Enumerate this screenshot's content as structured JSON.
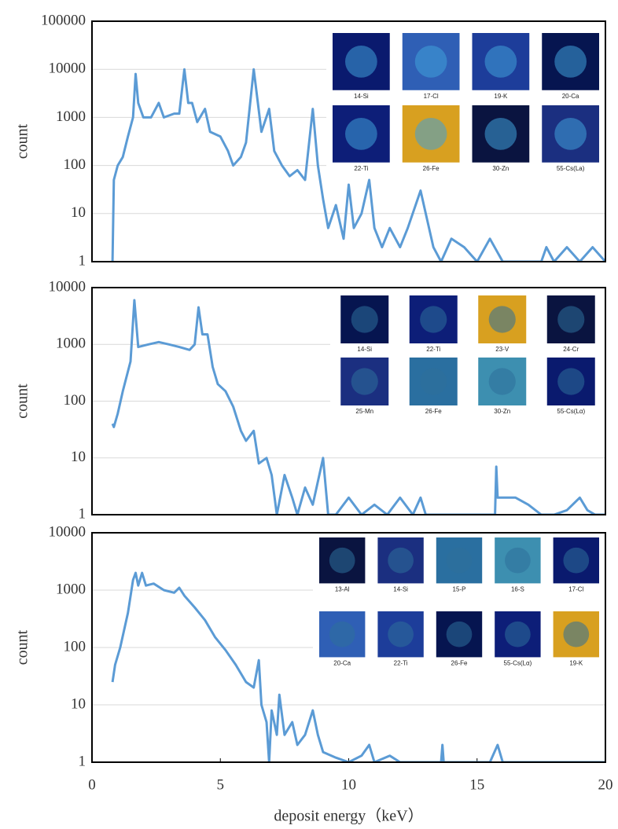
{
  "chart_data": [
    {
      "type": "line",
      "y_label": "count",
      "log_y": true,
      "grid": true,
      "color": "#5b9bd5",
      "xlim": [
        0,
        20
      ],
      "ylim": [
        1,
        100000
      ],
      "yticks": [
        1,
        10,
        100,
        1000,
        10000,
        100000
      ],
      "x": [
        0.8,
        0.85,
        1.0,
        1.2,
        1.4,
        1.6,
        1.7,
        1.8,
        2.0,
        2.3,
        2.6,
        2.8,
        3.2,
        3.4,
        3.6,
        3.75,
        3.9,
        4.1,
        4.4,
        4.6,
        5.0,
        5.3,
        5.5,
        5.8,
        6.0,
        6.3,
        6.6,
        6.9,
        7.1,
        7.4,
        7.7,
        8.0,
        8.3,
        8.6,
        8.8,
        9.0,
        9.2,
        9.5,
        9.8,
        10.0,
        10.2,
        10.5,
        10.8,
        11.0,
        11.3,
        11.6,
        12.0,
        12.3,
        12.8,
        13.0,
        13.3,
        13.6,
        14.0,
        14.5,
        15.0,
        15.5,
        16.0,
        17.5,
        17.7,
        18.0,
        18.5,
        19.0,
        19.5,
        20.0
      ],
      "values": [
        1,
        50,
        100,
        150,
        400,
        1000,
        8000,
        2000,
        1000,
        1000,
        2000,
        1000,
        1200,
        1200,
        10000,
        2000,
        2000,
        800,
        1500,
        500,
        400,
        200,
        100,
        150,
        300,
        10000,
        500,
        1500,
        200,
        100,
        60,
        80,
        50,
        1500,
        100,
        20,
        5,
        15,
        3,
        40,
        5,
        10,
        50,
        5,
        2,
        5,
        2,
        5,
        30,
        10,
        2,
        1,
        3,
        2,
        1,
        3,
        1,
        1,
        2,
        1,
        2,
        1,
        2,
        1
      ],
      "insets": [
        "14-Si",
        "17-Cl",
        "19-K",
        "20-Ca",
        "22-Ti",
        "26-Fe",
        "30-Zn",
        "55-Cs(La)"
      ]
    },
    {
      "type": "line",
      "y_label": "count",
      "log_y": true,
      "grid": true,
      "color": "#5b9bd5",
      "xlim": [
        0,
        20
      ],
      "ylim": [
        1,
        10000
      ],
      "yticks": [
        1,
        10,
        100,
        1000,
        10000
      ],
      "x": [
        0.8,
        0.85,
        1.0,
        1.2,
        1.5,
        1.65,
        1.8,
        2.2,
        2.6,
        3.0,
        3.4,
        3.8,
        4.0,
        4.15,
        4.3,
        4.5,
        4.7,
        4.9,
        5.2,
        5.5,
        5.8,
        6.0,
        6.3,
        6.5,
        6.8,
        7.0,
        7.2,
        7.5,
        7.8,
        8.0,
        8.3,
        8.6,
        9.0,
        9.2,
        9.5,
        10.0,
        10.5,
        11.0,
        11.5,
        12.0,
        12.5,
        12.8,
        13.0,
        14.0,
        15.7,
        15.75,
        15.8,
        16.5,
        17.0,
        17.5,
        18.0,
        18.5,
        19.0,
        19.3,
        19.6,
        20.0
      ],
      "values": [
        40,
        35,
        60,
        150,
        500,
        6000,
        900,
        1000,
        1100,
        1000,
        900,
        800,
        1000,
        4500,
        1500,
        1500,
        400,
        200,
        150,
        80,
        30,
        20,
        30,
        8,
        10,
        5,
        1,
        5,
        2,
        1,
        3,
        1.5,
        10,
        1,
        1,
        2,
        1,
        1.5,
        1,
        2,
        1,
        2,
        1,
        1,
        1,
        7,
        2,
        2,
        1.5,
        1,
        1,
        1.2,
        2,
        1.2,
        1,
        1
      ],
      "insets": [
        "14-Si",
        "22-Ti",
        "23-V",
        "24-Cr",
        "25-Mn",
        "26-Fe",
        "30-Zn",
        "55-Cs(Lα)"
      ]
    },
    {
      "type": "line",
      "y_label": "count",
      "x_label": "deposit energy（keV）",
      "log_y": true,
      "grid": true,
      "color": "#5b9bd5",
      "xlim": [
        0,
        20
      ],
      "xticks": [
        0,
        5,
        10,
        15,
        20
      ],
      "ylim": [
        1,
        10000
      ],
      "yticks": [
        1,
        10,
        100,
        1000,
        10000
      ],
      "x": [
        0.8,
        0.9,
        1.1,
        1.4,
        1.6,
        1.7,
        1.8,
        1.95,
        2.1,
        2.4,
        2.8,
        3.2,
        3.4,
        3.6,
        4.0,
        4.4,
        4.8,
        5.2,
        5.6,
        6.0,
        6.3,
        6.5,
        6.6,
        6.8,
        6.9,
        7.0,
        7.2,
        7.3,
        7.5,
        7.8,
        8.0,
        8.3,
        8.6,
        8.8,
        9.0,
        9.5,
        10.0,
        10.5,
        10.8,
        11.0,
        11.6,
        12.0,
        13.6,
        13.65,
        13.7,
        15.5,
        15.8,
        16.0,
        20.0
      ],
      "values": [
        25,
        50,
        100,
        400,
        1500,
        2000,
        1200,
        2000,
        1200,
        1300,
        1000,
        900,
        1100,
        800,
        500,
        300,
        150,
        90,
        50,
        25,
        20,
        60,
        10,
        5,
        1,
        8,
        3,
        15,
        3,
        5,
        2,
        3,
        8,
        3,
        1.5,
        1.2,
        1,
        1.3,
        2,
        1,
        1.3,
        1,
        1,
        2,
        1,
        1,
        2,
        1,
        1
      ],
      "insets": [
        "13-Al",
        "14-Si",
        "15-P",
        "16-S",
        "17-Cl",
        "20-Ca",
        "22-Ti",
        "26-Fe",
        "55-Cs(Lα)",
        "19-K"
      ]
    }
  ]
}
